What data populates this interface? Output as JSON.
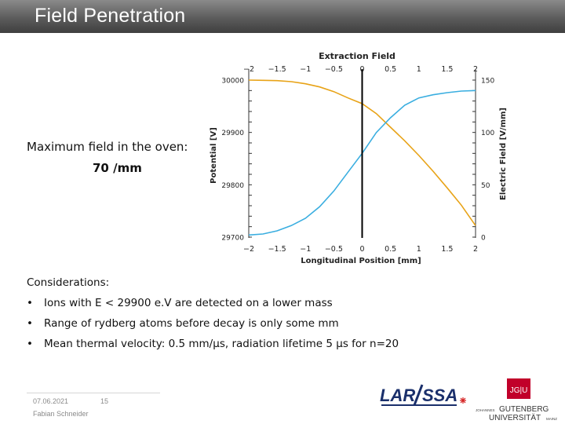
{
  "slide": {
    "title": "Field Penetration",
    "oven_label": "Maximum field in the oven:",
    "oven_value": "70 /mm"
  },
  "considerations": {
    "heading": "Considerations:",
    "bullet_char": "•",
    "items": [
      "Ions with E < 29900 e.V are detected on a lower mass",
      "Range of rydberg atoms before decay is only some mm",
      "Mean thermal velocity: 0.5 mm/µs, radiation lifetime 5 µs for n=20"
    ]
  },
  "footer": {
    "date": "07.06.2021",
    "page": "15",
    "author": "Fabian Schneider"
  },
  "logos": {
    "larissa_text_left": "LAR",
    "larissa_text_right": "SSA",
    "jgu_badge": "JG|U",
    "jgu_small_left": "JOHANNES",
    "jgu_big_top": "GUTENBERG",
    "jgu_big_bottom": "UNIVERSITÄT",
    "jgu_small_right": "MAINZ"
  },
  "colors": {
    "potential_line": "#e8a317",
    "field_line": "#3aaee0",
    "title_bar": "#5c5c5c",
    "jgu_red": "#c1002a",
    "larissa_blue": "#1a2f6b",
    "larissa_red": "#d42020"
  },
  "chart_data": {
    "type": "line",
    "title": "Extraction Field",
    "xlabel": "Longitudinal Position [mm]",
    "ylabel": "Potential [V]",
    "y2label": "Electric Field [V/mm]",
    "xlim": [
      -2,
      2
    ],
    "ylim": [
      29700,
      30000
    ],
    "y2lim": [
      0,
      150
    ],
    "x_ticks": [
      "−2",
      "−1.5",
      "−1",
      "−0.5",
      "0",
      "0.5",
      "1",
      "1.5",
      "2"
    ],
    "y_ticks": [
      "29700",
      "29800",
      "29900",
      "30000"
    ],
    "y2_ticks": [
      "0",
      "50",
      "100",
      "150"
    ],
    "grid": false,
    "vertical_marker_x": 0,
    "series": [
      {
        "axis": "left",
        "color": "#e8a317",
        "x": [
          -2,
          -1.75,
          -1.5,
          -1.25,
          -1.0,
          -0.75,
          -0.5,
          -0.25,
          0,
          0.25,
          0.5,
          0.75,
          1.0,
          1.25,
          1.5,
          1.75,
          2.0
        ],
        "y": [
          30000,
          29999.5,
          29999,
          29997,
          29993,
          29987,
          29978,
          29966,
          29955,
          29936,
          29910,
          29884,
          29856,
          29826,
          29794,
          29761,
          29722
        ]
      },
      {
        "axis": "right",
        "color": "#3aaee0",
        "x": [
          -2,
          -1.75,
          -1.5,
          -1.25,
          -1.0,
          -0.75,
          -0.5,
          -0.25,
          0,
          0.25,
          0.5,
          0.75,
          1.0,
          1.25,
          1.5,
          1.75,
          2.0
        ],
        "y": [
          2,
          3,
          6,
          11,
          18,
          29,
          44,
          62,
          80,
          100,
          114,
          126,
          133,
          136,
          138,
          139.5,
          140
        ]
      }
    ]
  }
}
